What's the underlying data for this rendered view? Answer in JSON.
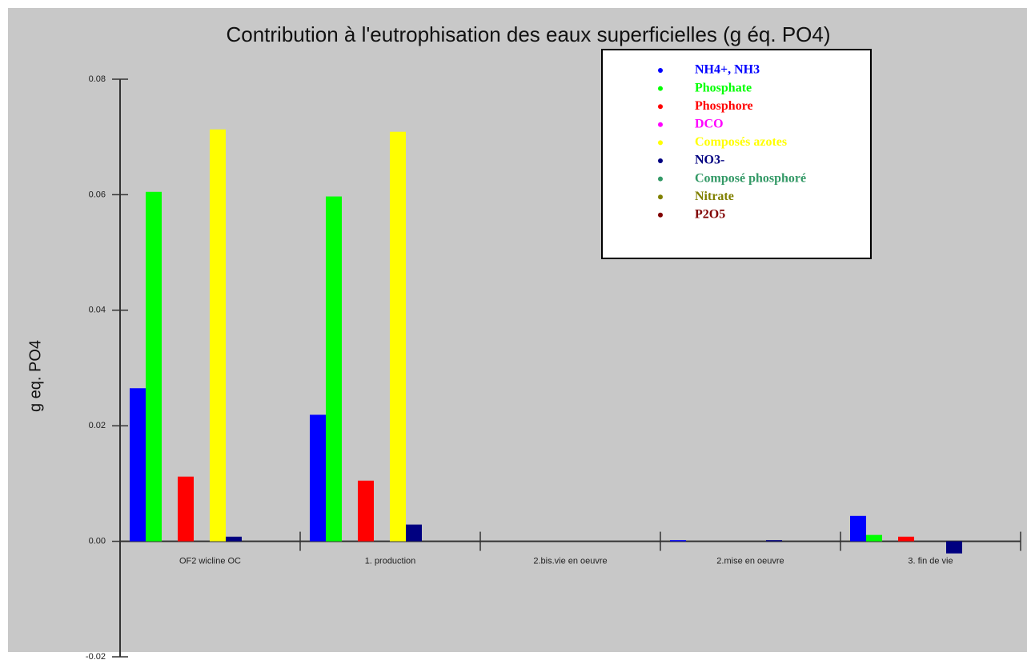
{
  "chart_data": {
    "type": "bar",
    "title": "Contribution à l'eutrophisation des eaux superficielles (g éq. PO4)",
    "y_label": "g eq. PO4",
    "categories": [
      "OF2 wicline OC",
      "1. production",
      "2.bis.vie en oeuvre",
      "2.mise en oeuvre",
      "3. fin de vie"
    ],
    "series": [
      {
        "name": "NH4+, NH3",
        "color": "#0000ff",
        "values": [
          0.0265,
          0.0219,
          0,
          0.0002,
          0.0044
        ]
      },
      {
        "name": "Phosphate",
        "color": "#00ff00",
        "values": [
          0.0605,
          0.0597,
          0,
          0,
          0.0011
        ]
      },
      {
        "name": "Phosphore",
        "color": "#ff0000",
        "values": [
          0.0112,
          0.0105,
          0,
          0,
          0.0008
        ]
      },
      {
        "name": "DCO",
        "color": "#ff00ff",
        "values": [
          0,
          0,
          0,
          0,
          0
        ]
      },
      {
        "name": "Composés azotes",
        "color": "#ffff00",
        "values": [
          0.0713,
          0.0709,
          0,
          0,
          0
        ]
      },
      {
        "name": "NO3-",
        "color": "#000080",
        "values": [
          0.0008,
          0.0029,
          0,
          0.0002,
          -0.0021
        ]
      },
      {
        "name": "Composé phosphoré",
        "color": "#339966",
        "values": [
          0,
          0,
          0,
          0,
          0
        ]
      },
      {
        "name": "Nitrate",
        "color": "#808000",
        "values": [
          0,
          0,
          0,
          0,
          0
        ]
      },
      {
        "name": "P2O5",
        "color": "#800000",
        "values": [
          0,
          0,
          0,
          0,
          0
        ]
      }
    ],
    "ylim": [
      -0.02,
      0.08
    ],
    "yticks": [
      -0.02,
      {
        "value": 0,
        "label": "0.00"
      },
      0.02,
      0.04,
      0.06,
      0.08
    ],
    "legend": "upper right"
  }
}
